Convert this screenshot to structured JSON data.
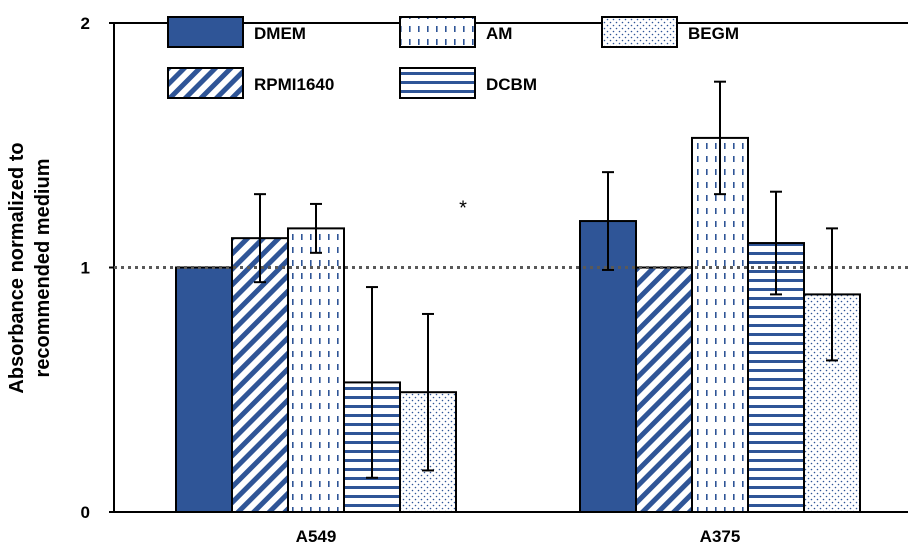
{
  "chart_data": {
    "type": "bar",
    "title": "",
    "xlabel": "",
    "ylabel_lines": [
      "Absorbance normalized to",
      "recommended medium"
    ],
    "ylim": [
      0,
      2
    ],
    "yticks": [
      0,
      1,
      2
    ],
    "grid": false,
    "reference_line": {
      "y": 1,
      "style": "dotted"
    },
    "legend_placement": "top",
    "categories": [
      "A549",
      "A375"
    ],
    "series": [
      {
        "name": "DMEM",
        "pattern": "solid",
        "color": "#2f5597",
        "values": [
          1.0,
          1.19
        ],
        "errors": [
          0.0,
          0.2
        ],
        "bar_order": [
          0,
          0
        ]
      },
      {
        "name": "RPMI1640",
        "pattern": "diagonal",
        "color": "#2f5597",
        "values": [
          1.12,
          1.0
        ],
        "errors": [
          0.18,
          0.0
        ],
        "bar_order": [
          1,
          1
        ]
      },
      {
        "name": "AM",
        "pattern": "dashed-vertical",
        "color": "#2f5597",
        "values": [
          1.16,
          1.53
        ],
        "errors": [
          0.1,
          0.23
        ],
        "bar_order": [
          2,
          2
        ]
      },
      {
        "name": "DCBM",
        "pattern": "horizontal",
        "color": "#2f5597",
        "values": [
          0.53,
          1.1
        ],
        "errors": [
          0.39,
          0.21
        ],
        "bar_order": [
          3,
          3
        ]
      },
      {
        "name": "BEGM",
        "pattern": "dots",
        "color": "#2f5597",
        "values": [
          0.49,
          0.89
        ],
        "errors": [
          0.32,
          0.27
        ],
        "bar_order": [
          4,
          4
        ]
      }
    ],
    "legend_order": [
      "DMEM",
      "AM",
      "BEGM",
      "RPMI1640",
      "DCBM"
    ],
    "annotations": [
      {
        "text": "*",
        "category": "A549",
        "near_y": 1.25
      }
    ]
  }
}
